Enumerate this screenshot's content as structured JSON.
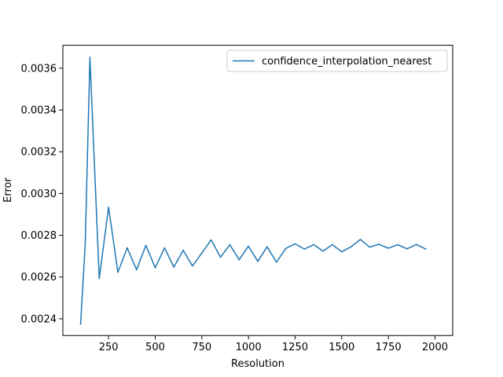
{
  "chart_data": {
    "type": "line",
    "xlabel": "Resolution",
    "ylabel": "Error",
    "xlim": [
      5,
      2095
    ],
    "ylim": [
      0.00232,
      0.00371
    ],
    "x_ticks": [
      250,
      500,
      750,
      1000,
      1250,
      1500,
      1750,
      2000
    ],
    "x_tick_labels": [
      "250",
      "500",
      "750",
      "1000",
      "1250",
      "1500",
      "1750",
      "2000"
    ],
    "y_ticks": [
      0.0024,
      0.0026,
      0.0028,
      0.003,
      0.0032,
      0.0034,
      0.0036
    ],
    "y_tick_labels": [
      "0.0024",
      "0.0026",
      "0.0028",
      "0.0030",
      "0.0032",
      "0.0034",
      "0.0036"
    ],
    "grid": false,
    "legend_position": "upper right",
    "series": [
      {
        "name": "confidence_interpolation_nearest",
        "color": "#1f77b4",
        "x": [
          100,
          125,
          150,
          200,
          250,
          300,
          350,
          400,
          450,
          500,
          550,
          600,
          650,
          700,
          750,
          800,
          850,
          900,
          950,
          1000,
          1050,
          1100,
          1150,
          1200,
          1250,
          1300,
          1350,
          1400,
          1450,
          1500,
          1550,
          1600,
          1650,
          1700,
          1750,
          1800,
          1850,
          1900,
          1950
        ],
        "values": [
          0.002375,
          0.00276,
          0.003652,
          0.002593,
          0.002935,
          0.002623,
          0.00274,
          0.002635,
          0.002752,
          0.002645,
          0.00274,
          0.002648,
          0.002728,
          0.002653,
          0.002715,
          0.002778,
          0.002695,
          0.002755,
          0.002683,
          0.002748,
          0.002675,
          0.002745,
          0.002671,
          0.002737,
          0.002759,
          0.002734,
          0.002755,
          0.002724,
          0.002755,
          0.002721,
          0.002745,
          0.00278,
          0.002743,
          0.002757,
          0.002738,
          0.002755,
          0.002735,
          0.002756,
          0.002734
        ]
      }
    ]
  }
}
